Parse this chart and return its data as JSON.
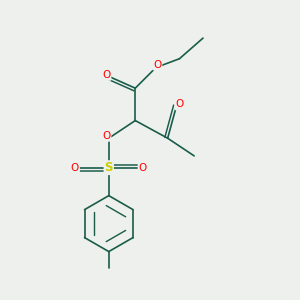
{
  "bg_color": "#edf0ed",
  "bond_color": "#1a5c4a",
  "bond_width": 1.2,
  "O_color": "#ff0000",
  "S_color": "#cccc00",
  "figsize": [
    3.0,
    3.0
  ],
  "dpi": 100,
  "xlim": [
    0,
    10
  ],
  "ylim": [
    0,
    10
  ]
}
